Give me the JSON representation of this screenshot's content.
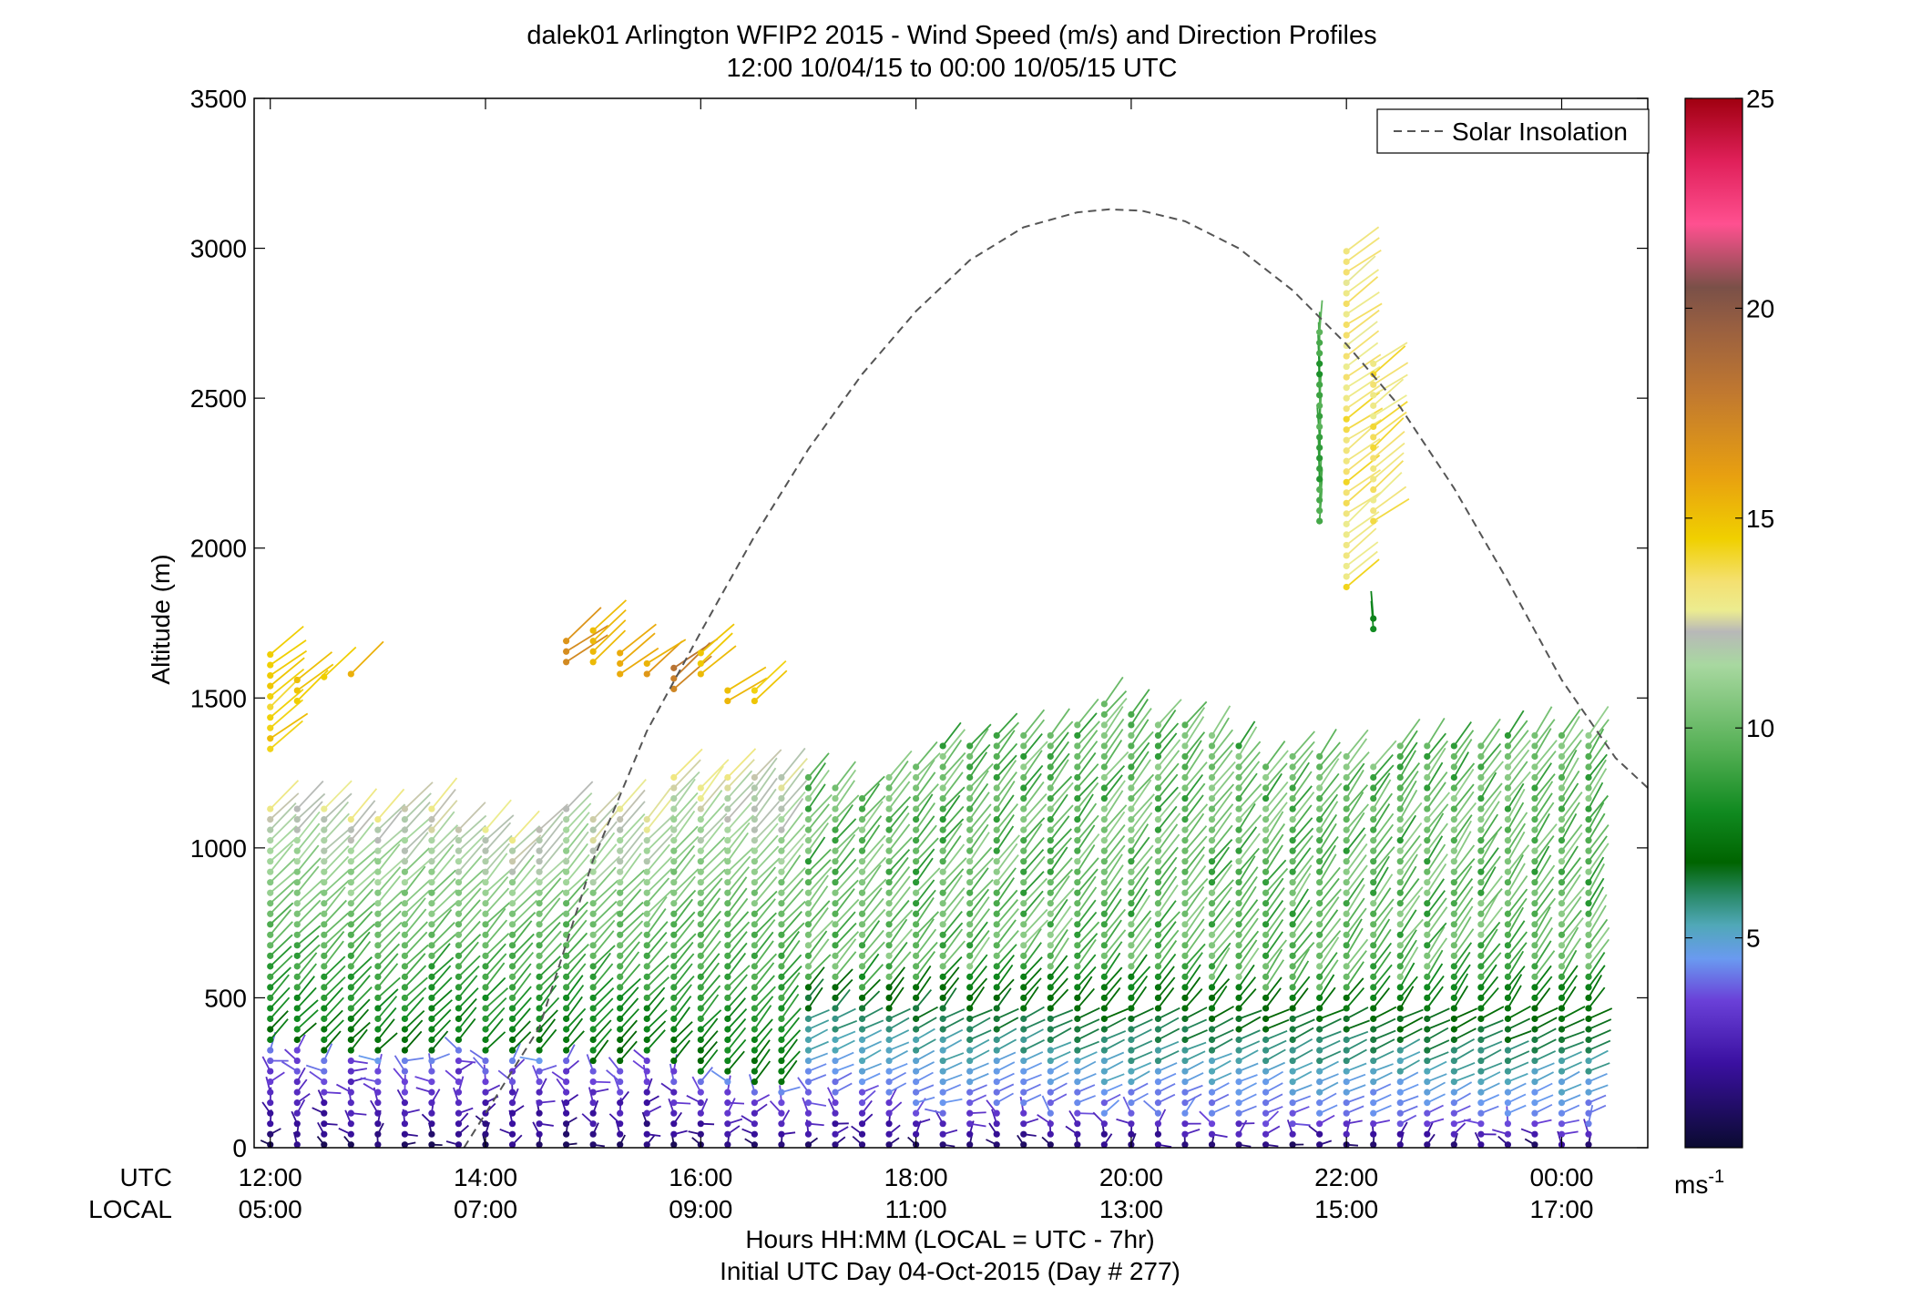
{
  "chart_data": {
    "type": "scatter",
    "title": "dalek01 Arlington WFIP2 2015 - Wind Speed (m/s) and Direction Profiles",
    "subtitle": "12:00 10/04/15 to 00:00 10/05/15  UTC",
    "ylabel": "Altitude (m)",
    "xlabel": "Hours HH:MM  (LOCAL = UTC - 7hr)",
    "xlabel2": "Initial UTC Day 04-Oct-2015 (Day # 277)",
    "x_row_labels": [
      "UTC",
      "LOCAL"
    ],
    "xlim": [
      11.85,
      24.8
    ],
    "ylim": [
      0,
      3500
    ],
    "yticks": [
      0,
      500,
      1000,
      1500,
      2000,
      2500,
      3000,
      3500
    ],
    "xticks_utc": [
      {
        "x": 12,
        "label": "12:00"
      },
      {
        "x": 14,
        "label": "14:00"
      },
      {
        "x": 16,
        "label": "16:00"
      },
      {
        "x": 18,
        "label": "18:00"
      },
      {
        "x": 20,
        "label": "20:00"
      },
      {
        "x": 22,
        "label": "22:00"
      },
      {
        "x": 24,
        "label": "00:00"
      }
    ],
    "xticks_local": [
      "05:00",
      "07:00",
      "09:00",
      "11:00",
      "13:00",
      "15:00",
      "17:00"
    ],
    "legend": {
      "entries": [
        "Solar Insolation"
      ],
      "placement": "top-right"
    },
    "colorbar": {
      "min": 0,
      "max": 25,
      "ticks": [
        5,
        10,
        15,
        20,
        25
      ],
      "unit": "ms",
      "unit_exp": "-1",
      "stops": [
        {
          "v": 0,
          "c": "#0a0a30"
        },
        {
          "v": 2,
          "c": "#3a10a0"
        },
        {
          "v": 3.5,
          "c": "#6a40d8"
        },
        {
          "v": 4.5,
          "c": "#6a9af0"
        },
        {
          "v": 5.3,
          "c": "#50a8b8"
        },
        {
          "v": 6,
          "c": "#2a8a6a"
        },
        {
          "v": 6.8,
          "c": "#006400"
        },
        {
          "v": 8,
          "c": "#108a20"
        },
        {
          "v": 9.5,
          "c": "#55b055"
        },
        {
          "v": 11.5,
          "c": "#a8d8a0"
        },
        {
          "v": 12.3,
          "c": "#b8b8b8"
        },
        {
          "v": 12.8,
          "c": "#ecec90"
        },
        {
          "v": 13.5,
          "c": "#f4e070"
        },
        {
          "v": 14.5,
          "c": "#f0d000"
        },
        {
          "v": 16,
          "c": "#e8a010"
        },
        {
          "v": 18,
          "c": "#c07830"
        },
        {
          "v": 19.5,
          "c": "#9a6040"
        },
        {
          "v": 20.5,
          "c": "#7a5048"
        },
        {
          "v": 22,
          "c": "#ff5090"
        },
        {
          "v": 23.5,
          "c": "#e0205a"
        },
        {
          "v": 25,
          "c": "#a00010"
        }
      ]
    },
    "solar_insolation": {
      "style": "dashed",
      "color": "#555555",
      "x": [
        13.8,
        14.5,
        15.0,
        15.5,
        16.0,
        16.5,
        17.0,
        17.5,
        18.0,
        18.5,
        19.0,
        19.5,
        19.8,
        20.1,
        20.5,
        21.0,
        21.5,
        22.0,
        22.5,
        23.0,
        23.5,
        24.0,
        24.5,
        24.8
      ],
      "y": [
        0,
        400,
        960,
        1390,
        1720,
        2040,
        2330,
        2580,
        2790,
        2960,
        3070,
        3120,
        3130,
        3125,
        3090,
        3000,
        2860,
        2680,
        2470,
        2200,
        1890,
        1560,
        1300,
        1200
      ]
    },
    "profiles": {
      "times_utc": [
        12.0,
        12.25,
        12.5,
        12.75,
        13.0,
        13.25,
        13.5,
        13.75,
        14.0,
        14.25,
        14.5,
        14.75,
        15.0,
        15.25,
        15.5,
        15.75,
        16.0,
        16.25,
        16.5,
        16.75,
        17.0,
        17.25,
        17.5,
        17.75,
        18.0,
        18.25,
        18.5,
        18.75,
        19.0,
        19.25,
        19.5,
        19.75,
        20.0,
        20.25,
        20.5,
        20.75,
        21.0,
        21.25,
        21.5,
        21.75,
        22.0,
        22.25,
        22.5,
        22.75,
        23.0,
        23.25,
        23.5,
        23.75,
        24.0,
        24.25
      ],
      "top_altitude_m": [
        1140,
        1130,
        1130,
        1110,
        1110,
        1150,
        1130,
        1080,
        1090,
        1050,
        1090,
        1160,
        1100,
        1130,
        1110,
        1240,
        1220,
        1250,
        1240,
        1240,
        1240,
        1210,
        1170,
        1240,
        1300,
        1370,
        1370,
        1380,
        1390,
        1390,
        1410,
        1500,
        1450,
        1410,
        1410,
        1390,
        1370,
        1300,
        1310,
        1320,
        1310,
        1280,
        1360,
        1370,
        1370,
        1370,
        1390,
        1390,
        1400,
        1390
      ],
      "low_wind_top_m": [
        350,
        330,
        320,
        320,
        300,
        290,
        310,
        330,
        300,
        290,
        300,
        320,
        260,
        280,
        310,
        280,
        240,
        220,
        210,
        200,
        190,
        180,
        175,
        170,
        160,
        150,
        145,
        140,
        135,
        130,
        125,
        120,
        120,
        118,
        115,
        112,
        110,
        108,
        105,
        100,
        100,
        98,
        95,
        92,
        90,
        90,
        88,
        86,
        85,
        85
      ],
      "upper_segments": [
        {
          "t": 12.0,
          "z0": 1330,
          "z1": 1670,
          "speed": 14.5
        },
        {
          "t": 12.25,
          "z0": 1490,
          "z1": 1570,
          "speed": 14.5
        },
        {
          "t": 12.5,
          "z0": 1570,
          "z1": 1580,
          "speed": 14.5
        },
        {
          "t": 12.75,
          "z0": 1580,
          "z1": 1580,
          "speed": 15
        },
        {
          "t": 14.75,
          "z0": 1620,
          "z1": 1700,
          "speed": 16.5
        },
        {
          "t": 15.0,
          "z0": 1620,
          "z1": 1740,
          "speed": 15.5
        },
        {
          "t": 15.25,
          "z0": 1580,
          "z1": 1670,
          "speed": 16
        },
        {
          "t": 15.5,
          "z0": 1580,
          "z1": 1640,
          "speed": 16
        },
        {
          "t": 15.75,
          "z0": 1530,
          "z1": 1630,
          "speed": 18
        },
        {
          "t": 16.0,
          "z0": 1580,
          "z1": 1670,
          "speed": 15
        },
        {
          "t": 16.25,
          "z0": 1490,
          "z1": 1530,
          "speed": 15
        },
        {
          "t": 16.5,
          "z0": 1490,
          "z1": 1530,
          "speed": 15
        },
        {
          "t": 21.75,
          "z0": 2090,
          "z1": 2720,
          "speed": 9
        },
        {
          "t": 22.0,
          "z0": 1870,
          "z1": 2990,
          "speed": 13.5
        },
        {
          "t": 22.25,
          "z0": 2090,
          "z1": 2640,
          "speed": 13.5
        },
        {
          "t": 22.25,
          "z0": 1730,
          "z1": 1790,
          "speed": 8
        }
      ]
    }
  }
}
